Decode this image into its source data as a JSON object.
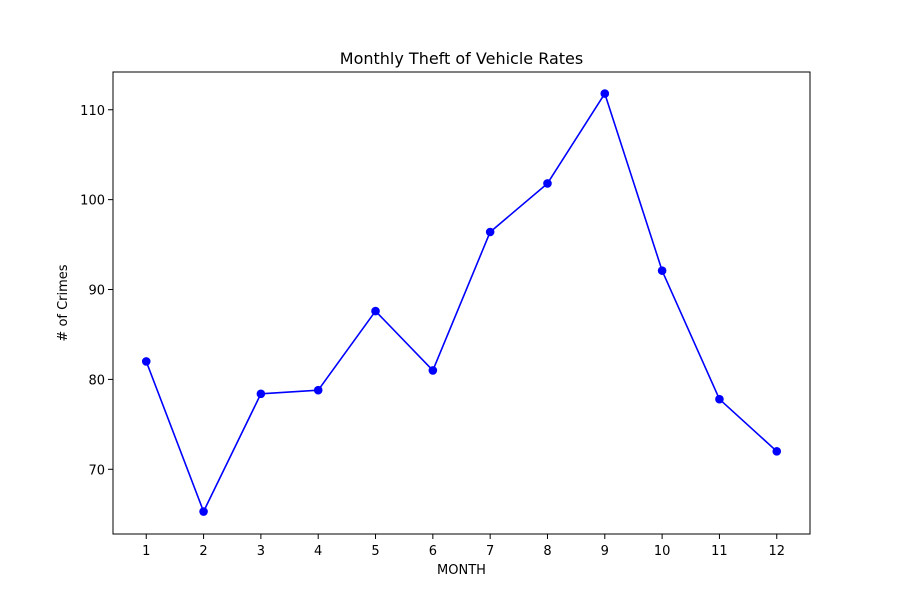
{
  "chart_data": {
    "type": "line",
    "title": "Monthly Theft of Vehicle Rates",
    "xlabel": "MONTH",
    "ylabel": "# of Crimes",
    "x": [
      1,
      2,
      3,
      4,
      5,
      6,
      7,
      8,
      9,
      10,
      11,
      12
    ],
    "x_tick_labels": [
      "1",
      "2",
      "3",
      "4",
      "5",
      "6",
      "7",
      "8",
      "9",
      "10",
      "11",
      "12"
    ],
    "y_ticks": [
      70,
      80,
      90,
      100,
      110
    ],
    "y_tick_labels": [
      "70",
      "80",
      "90",
      "100",
      "110"
    ],
    "xlim": [
      0.42,
      12.58
    ],
    "ylim": [
      62.8,
      114.2
    ],
    "grid": false,
    "legend": "none",
    "series": [
      {
        "values": [
          82,
          65.3,
          78.4,
          78.8,
          87.6,
          81,
          96.4,
          101.8,
          111.8,
          92.1,
          77.8,
          72
        ],
        "color": "#0000ff",
        "marker": "circle"
      }
    ]
  }
}
